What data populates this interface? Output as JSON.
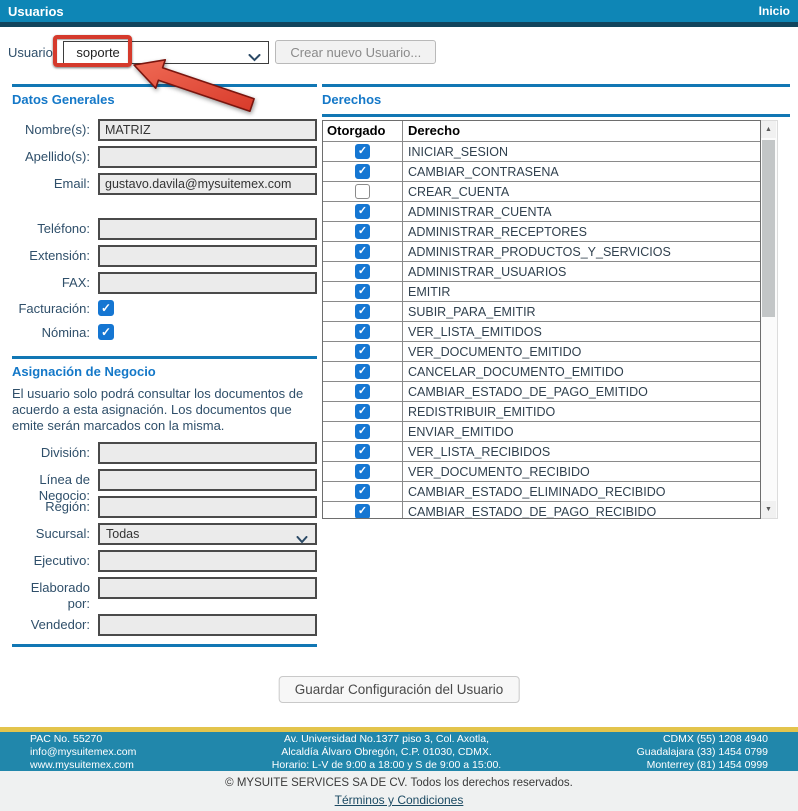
{
  "header": {
    "title": "Usuarios",
    "home": "Inicio"
  },
  "toolbar": {
    "usuario_label": "Usuario:",
    "selected_user": "soporte",
    "create_user_button": "Crear nuevo Usuario..."
  },
  "datos_generales": {
    "title": "Datos Generales",
    "nombre_label": "Nombre(s):",
    "nombre_value": "MATRIZ",
    "apellido_label": "Apellido(s):",
    "apellido_value": "",
    "email_label": "Email:",
    "email_value": "gustavo.davila@mysuitemex.com",
    "telefono_label": "Teléfono:",
    "telefono_value": "",
    "extension_label": "Extensión:",
    "extension_value": "",
    "fax_label": "FAX:",
    "fax_value": "",
    "facturacion_label": "Facturación:",
    "facturacion_checked": true,
    "nomina_label": "Nómina:",
    "nomina_checked": true
  },
  "asignacion": {
    "title": "Asignación de Negocio",
    "description": "El usuario solo podrá consultar los documentos de acuerdo a esta asignación. Los documentos que emite serán marcados con la misma.",
    "division_label": "División:",
    "division_value": "",
    "linea_label": "Línea de Negocio:",
    "linea_value": "",
    "region_label": "Región:",
    "region_value": "",
    "sucursal_label": "Sucursal:",
    "sucursal_value": "Todas",
    "ejecutivo_label": "Ejecutivo:",
    "ejecutivo_value": "",
    "elaborado_label": "Elaborado por:",
    "elaborado_value": "",
    "vendedor_label": "Vendedor:",
    "vendedor_value": ""
  },
  "derechos": {
    "title": "Derechos",
    "col_otorgado": "Otorgado",
    "col_derecho": "Derecho",
    "rows": [
      {
        "derecho": "INICIAR_SESION",
        "otorgado": true
      },
      {
        "derecho": "CAMBIAR_CONTRASENA",
        "otorgado": true
      },
      {
        "derecho": "CREAR_CUENTA",
        "otorgado": false
      },
      {
        "derecho": "ADMINISTRAR_CUENTA",
        "otorgado": true
      },
      {
        "derecho": "ADMINISTRAR_RECEPTORES",
        "otorgado": true
      },
      {
        "derecho": "ADMINISTRAR_PRODUCTOS_Y_SERVICIOS",
        "otorgado": true
      },
      {
        "derecho": "ADMINISTRAR_USUARIOS",
        "otorgado": true
      },
      {
        "derecho": "EMITIR",
        "otorgado": true
      },
      {
        "derecho": "SUBIR_PARA_EMITIR",
        "otorgado": true
      },
      {
        "derecho": "VER_LISTA_EMITIDOS",
        "otorgado": true
      },
      {
        "derecho": "VER_DOCUMENTO_EMITIDO",
        "otorgado": true
      },
      {
        "derecho": "CANCELAR_DOCUMENTO_EMITIDO",
        "otorgado": true
      },
      {
        "derecho": "CAMBIAR_ESTADO_DE_PAGO_EMITIDO",
        "otorgado": true
      },
      {
        "derecho": "REDISTRIBUIR_EMITIDO",
        "otorgado": true
      },
      {
        "derecho": "ENVIAR_EMITIDO",
        "otorgado": true
      },
      {
        "derecho": "VER_LISTA_RECIBIDOS",
        "otorgado": true
      },
      {
        "derecho": "VER_DOCUMENTO_RECIBIDO",
        "otorgado": true
      },
      {
        "derecho": "CAMBIAR_ESTADO_ELIMINADO_RECIBIDO",
        "otorgado": true
      },
      {
        "derecho": "CAMBIAR_ESTADO_DE_PAGO_RECIBIDO",
        "otorgado": true
      }
    ]
  },
  "save_button": "Guardar Configuración del Usuario",
  "footer": {
    "left": [
      "PAC No. 55270",
      "info@mysuitemex.com",
      "www.mysuitemex.com"
    ],
    "center": [
      "Av. Universidad No.1377 piso 3, Col. Axotla,",
      "Alcaldía Álvaro Obregón, C.P. 01030, CDMX.",
      "Horario: L-V de 9:00 a 18:00 y S de 9:00 a 15:00."
    ],
    "right": [
      "CDMX (55) 1208 4940",
      "Guadalajara (33) 1454 0799",
      "Monterrey (81) 1454 0999"
    ],
    "copyright": "© MYSUITE SERVICES SA DE CV. Todos los derechos reservados.",
    "terms_link": "Términos y Condiciones"
  },
  "colors": {
    "header_teal": "#0e86b6",
    "accent_blue": "#1478c8",
    "checkbox_blue": "#1576d2",
    "annotation_red": "#d53a2c",
    "footer_teal": "#2187ab",
    "footer_yellow": "#e3c44c"
  }
}
